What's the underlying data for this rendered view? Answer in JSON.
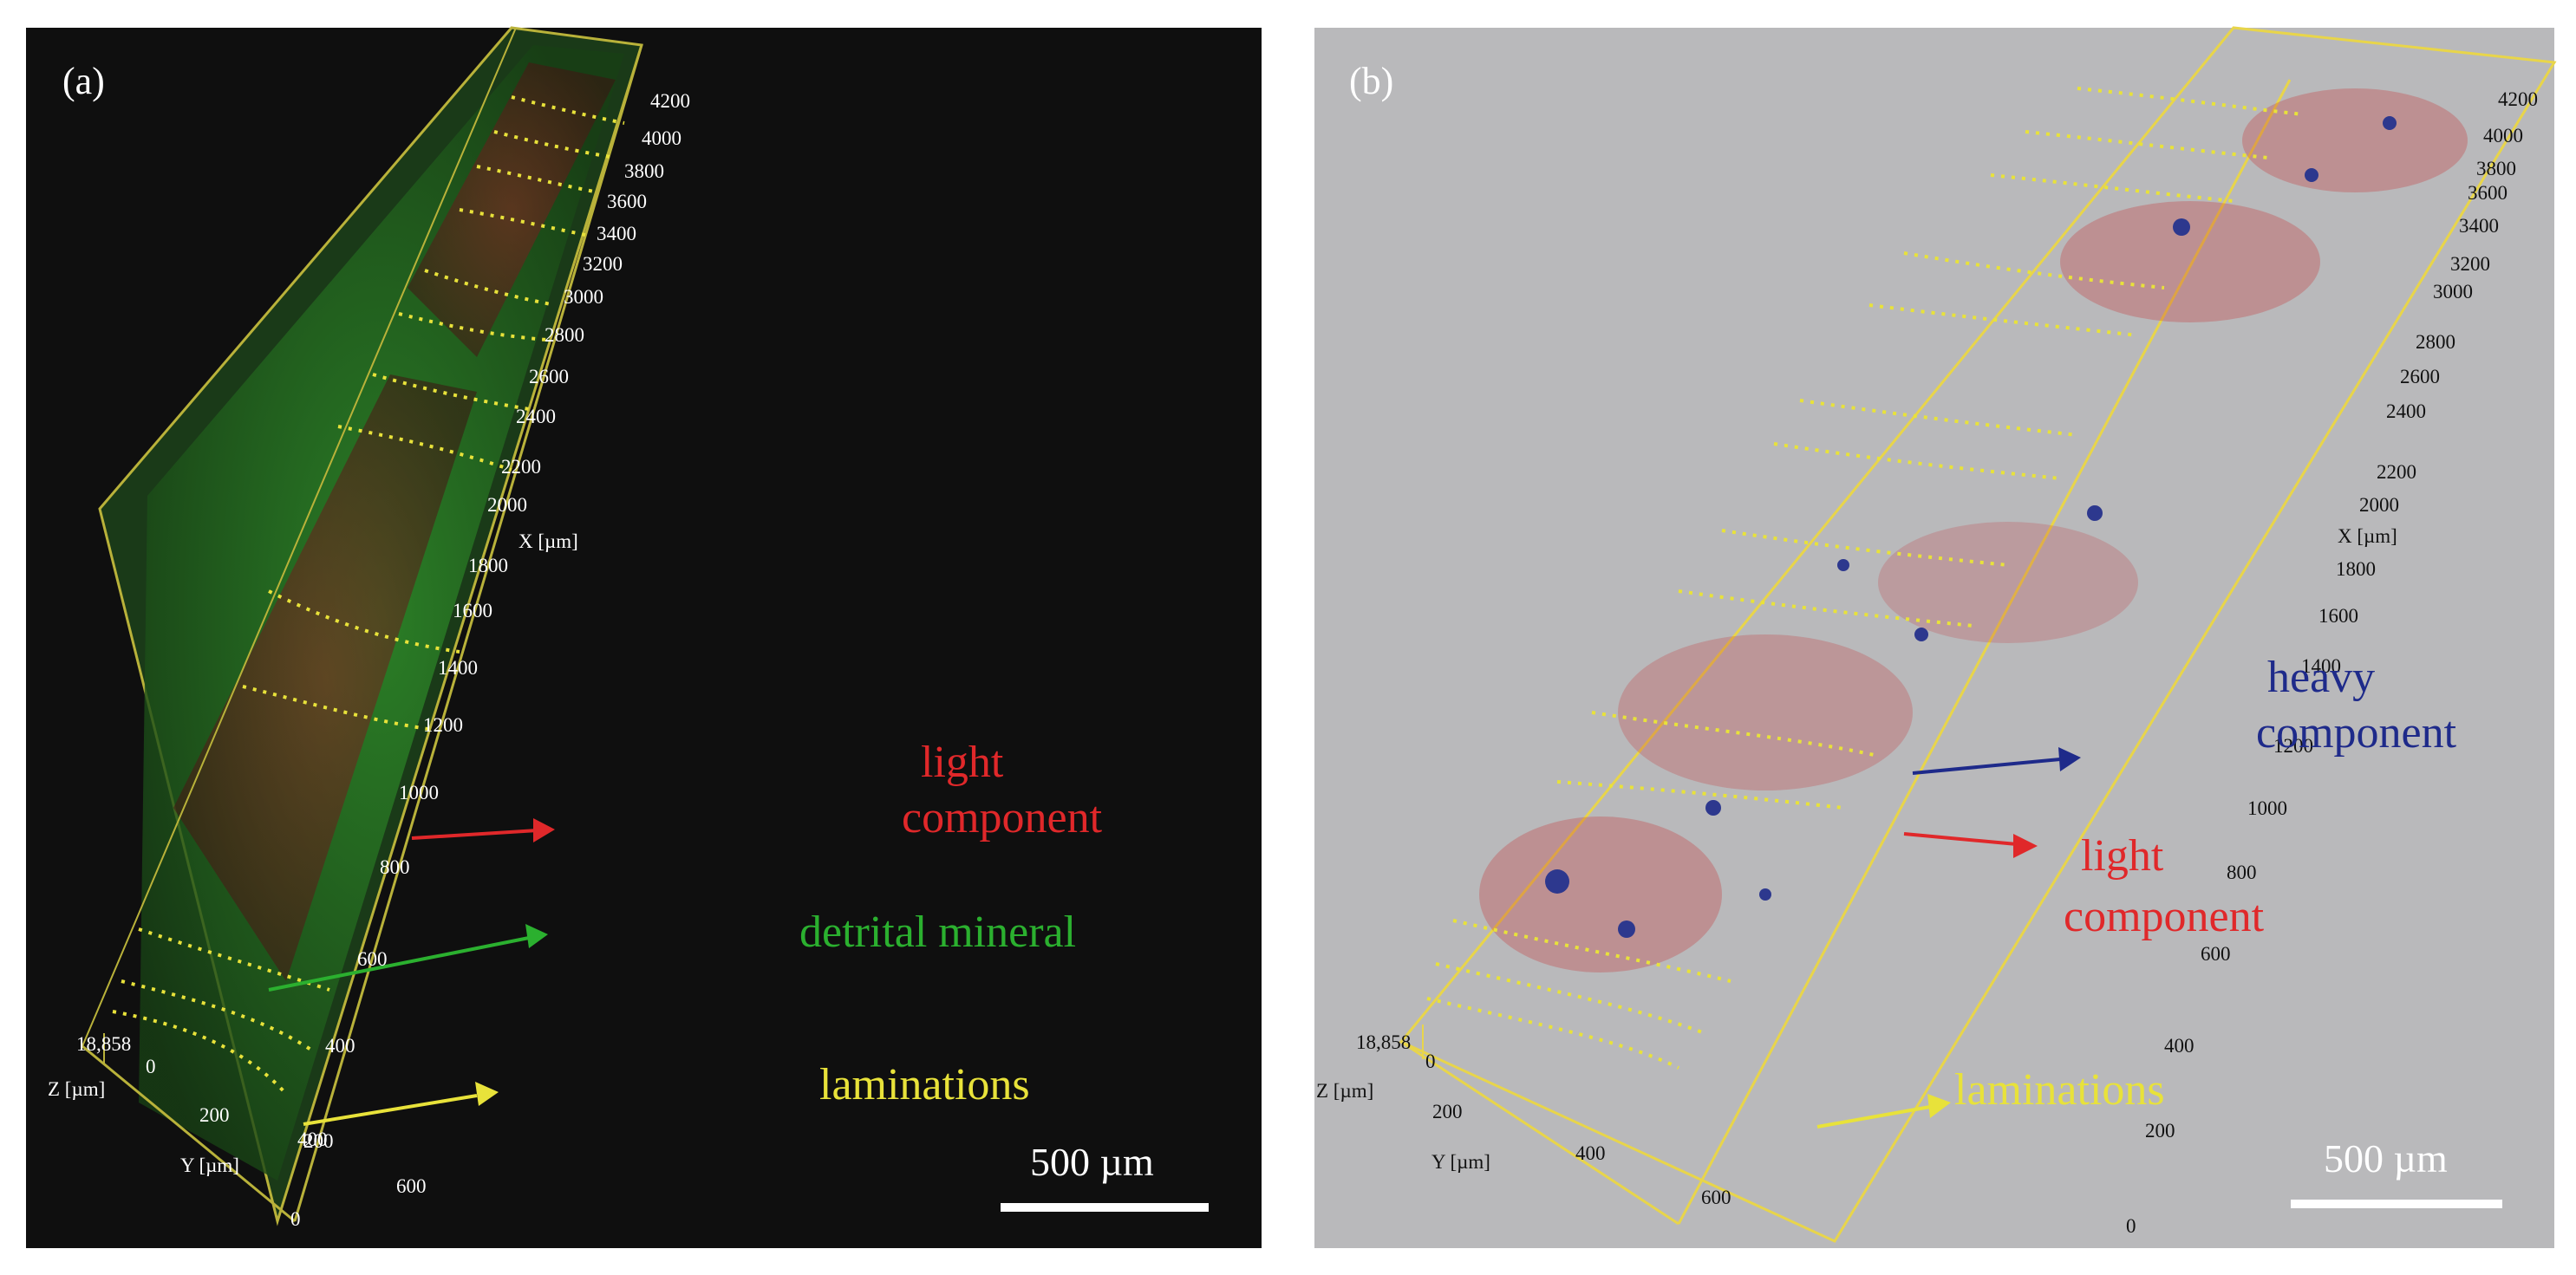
{
  "figure": {
    "panel_a": {
      "label": "(a)",
      "x_ticks": [
        "4200",
        "4000",
        "3800",
        "3600",
        "3400",
        "3200",
        "3000",
        "2800",
        "2600",
        "2400",
        "2200",
        "2000",
        "1800",
        "1600",
        "1400",
        "1200",
        "1000",
        "800",
        "600",
        "400",
        "200",
        "0"
      ],
      "x_axis_label": "X [µm]",
      "y_ticks": [
        "200",
        "400",
        "600"
      ],
      "y_axis_label": "Y [µm]",
      "z_top": "18,858",
      "z_zero": "0",
      "z_axis_label": "Z [µm]",
      "annotations": {
        "light_line1": "light",
        "light_line2": "component",
        "detrital": "detrital mineral",
        "laminations": "laminations"
      },
      "scale_bar": "500 µm"
    },
    "panel_b": {
      "label": "(b)",
      "x_ticks": [
        "4200",
        "4000",
        "3800",
        "3600",
        "3400",
        "3200",
        "3000",
        "2800",
        "2600",
        "2400",
        "2200",
        "2000",
        "1800",
        "1600",
        "1400",
        "1200",
        "1000",
        "800",
        "600",
        "400",
        "200",
        "0"
      ],
      "x_axis_label": "X [µm]",
      "y_ticks": [
        "200",
        "400",
        "600"
      ],
      "y_axis_label": "Y [µm]",
      "z_top": "18,858",
      "z_zero": "0",
      "z_axis_label": "Z [µm]",
      "annotations": {
        "heavy_line1": "heavy",
        "heavy_line2": "component",
        "light_line1": "light",
        "light_line2": "component",
        "laminations": "laminations"
      },
      "scale_bar": "500 µm"
    },
    "colors": {
      "red": "#e0282a",
      "green": "#2bb02f",
      "yellow": "#e8e23a",
      "blue": "#1e2a8a",
      "white": "#ffffff"
    }
  }
}
